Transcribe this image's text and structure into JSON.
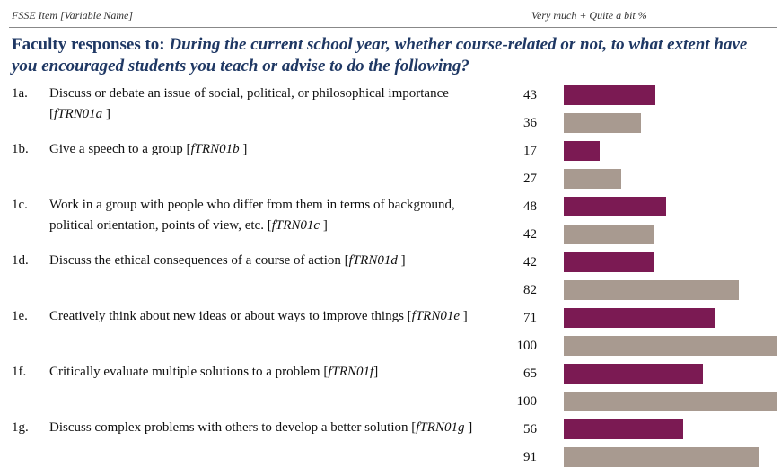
{
  "chart_data": {
    "type": "bar",
    "header": {
      "left": "FSSE Item [Variable Name]",
      "right": "Very much + Quite a bit %"
    },
    "title_lead": "Faculty responses to:",
    "title": "During the current school year, whether course-related or not, to what extent have you encouraged students you teach or advise to do the following?",
    "codes": [
      "1a.",
      "1b.",
      "1c.",
      "1d.",
      "1e.",
      "1f.",
      "1g."
    ],
    "categories": [
      {
        "before": "Discuss or debate an issue of social, political, or philosophical importance [",
        "variable": "fTRN01a",
        "after": " ]"
      },
      {
        "before": "Give a speech to a group [",
        "variable": "fTRN01b",
        "after": " ]"
      },
      {
        "before": "Work in a group with people who differ from them in terms of background, political orientation, points of view, etc. [",
        "variable": "fTRN01c",
        "after": " ]"
      },
      {
        "before": "Discuss the ethical consequences of a course of action [",
        "variable": "fTRN01d",
        "after": " ]"
      },
      {
        "before": "Creatively think about new ideas or about ways to improve things [",
        "variable": "fTRN01e",
        "after": " ]"
      },
      {
        "before": "Critically evaluate multiple solutions to a problem [",
        "variable": "fTRN01f",
        "after": "]"
      },
      {
        "before": "Discuss complex problems with others to develop a better solution  [",
        "variable": "fTRN01g",
        "after": " ]"
      }
    ],
    "series": [
      {
        "color": "#7b1a53",
        "values": [
          43,
          17,
          48,
          42,
          71,
          65,
          56
        ]
      },
      {
        "color": "#a89a90",
        "values": [
          36,
          27,
          42,
          82,
          100,
          100,
          91
        ]
      }
    ],
    "xlim": [
      0,
      100
    ]
  }
}
